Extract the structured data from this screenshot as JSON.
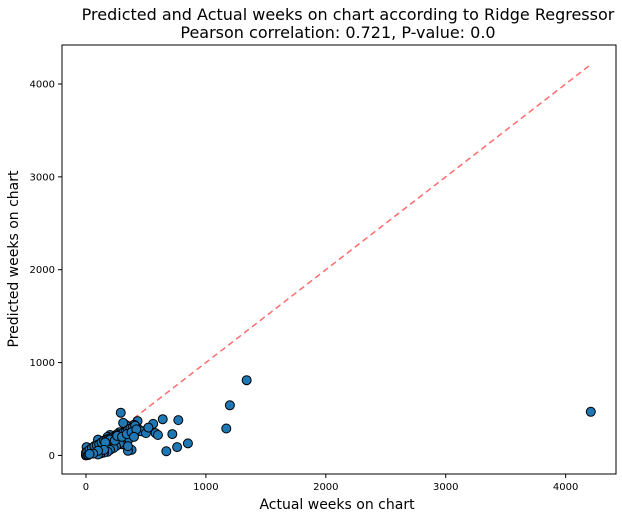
{
  "chart_data": {
    "type": "scatter",
    "title": "Predicted and Actual weeks on chart according to Ridge Regressor",
    "subtitle": "Pearson correlation: 0.721, P-value: 0.0",
    "xlabel": "Actual weeks on chart",
    "ylabel": "Predicted weeks on chart",
    "xlim": [
      -200,
      4420
    ],
    "ylim": [
      -200,
      4420
    ],
    "xticks": [
      0,
      1000,
      2000,
      3000,
      4000
    ],
    "yticks": [
      0,
      1000,
      2000,
      3000,
      4000
    ],
    "grid": false,
    "colors": {
      "points": "#1f77b4",
      "point_edge": "#000000",
      "reference_line": "#ff6b6b"
    },
    "reference_line": {
      "style": "dashed",
      "x": [
        0,
        4200
      ],
      "y": [
        0,
        4200
      ]
    },
    "series": [
      {
        "x": [
          1340,
          1200,
          1170,
          4210,
          290,
          770,
          850,
          640,
          560,
          580,
          720,
          670,
          760,
          480,
          430,
          400,
          380,
          350,
          330,
          310,
          300,
          280,
          260,
          240,
          220,
          200,
          180,
          160,
          140,
          120,
          100,
          80,
          60,
          40,
          20,
          10,
          5,
          0,
          0,
          0,
          10,
          30,
          50,
          70,
          90,
          110,
          130,
          150,
          170,
          190,
          210,
          230,
          250,
          270,
          290,
          310,
          330,
          350,
          370,
          390,
          410,
          440,
          460,
          500,
          520,
          600,
          320,
          300,
          360,
          280,
          250,
          230,
          200,
          180,
          150,
          120,
          100,
          200,
          160,
          240,
          260,
          300,
          340,
          380,
          420,
          400,
          350,
          150,
          100,
          60,
          20,
          30
        ],
        "y": [
          810,
          540,
          290,
          470,
          460,
          380,
          130,
          390,
          340,
          240,
          230,
          45,
          90,
          260,
          370,
          330,
          60,
          50,
          330,
          350,
          160,
          250,
          230,
          200,
          210,
          220,
          200,
          150,
          120,
          100,
          170,
          90,
          70,
          50,
          40,
          20,
          90,
          0,
          10,
          30,
          40,
          60,
          80,
          100,
          110,
          120,
          140,
          160,
          170,
          180,
          190,
          200,
          210,
          220,
          230,
          240,
          250,
          270,
          290,
          300,
          320,
          280,
          260,
          240,
          300,
          220,
          150,
          120,
          180,
          130,
          100,
          80,
          60,
          40,
          30,
          20,
          10,
          170,
          140,
          160,
          210,
          200,
          230,
          250,
          280,
          200,
          100,
          60,
          50,
          20,
          5,
          15
        ]
      }
    ]
  }
}
